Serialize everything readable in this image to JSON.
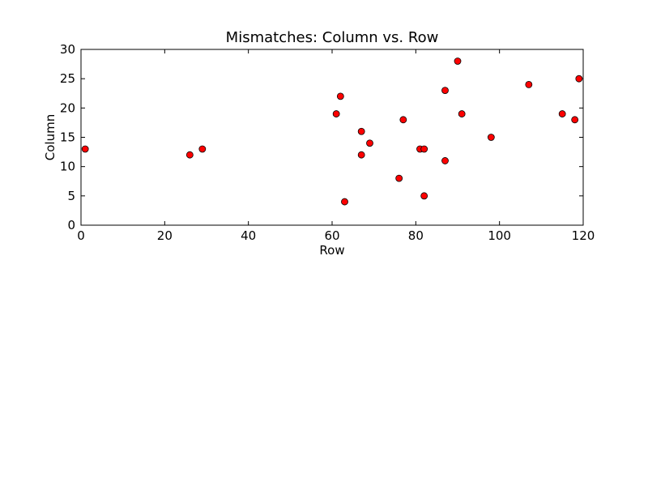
{
  "chart_data": {
    "type": "scatter",
    "title": "Mismatches: Column vs. Row",
    "xlabel": "Row",
    "ylabel": "Column",
    "xlim": [
      0,
      120
    ],
    "ylim": [
      0,
      30
    ],
    "xticks": [
      0,
      20,
      40,
      60,
      80,
      100,
      120
    ],
    "yticks": [
      0,
      5,
      10,
      15,
      20,
      25,
      30
    ],
    "grid": false,
    "marker_color": "#ff0000",
    "marker_edge_color": "#000000",
    "points": [
      {
        "x": 1,
        "y": 13
      },
      {
        "x": 26,
        "y": 12
      },
      {
        "x": 29,
        "y": 13
      },
      {
        "x": 61,
        "y": 19
      },
      {
        "x": 62,
        "y": 22
      },
      {
        "x": 63,
        "y": 4
      },
      {
        "x": 67,
        "y": 16
      },
      {
        "x": 67,
        "y": 12
      },
      {
        "x": 69,
        "y": 14
      },
      {
        "x": 76,
        "y": 8
      },
      {
        "x": 77,
        "y": 18
      },
      {
        "x": 81,
        "y": 13
      },
      {
        "x": 82,
        "y": 13
      },
      {
        "x": 82,
        "y": 5
      },
      {
        "x": 87,
        "y": 23
      },
      {
        "x": 87,
        "y": 11
      },
      {
        "x": 90,
        "y": 28
      },
      {
        "x": 91,
        "y": 19
      },
      {
        "x": 98,
        "y": 15
      },
      {
        "x": 107,
        "y": 24
      },
      {
        "x": 115,
        "y": 19
      },
      {
        "x": 118,
        "y": 18
      },
      {
        "x": 119,
        "y": 25
      }
    ]
  }
}
